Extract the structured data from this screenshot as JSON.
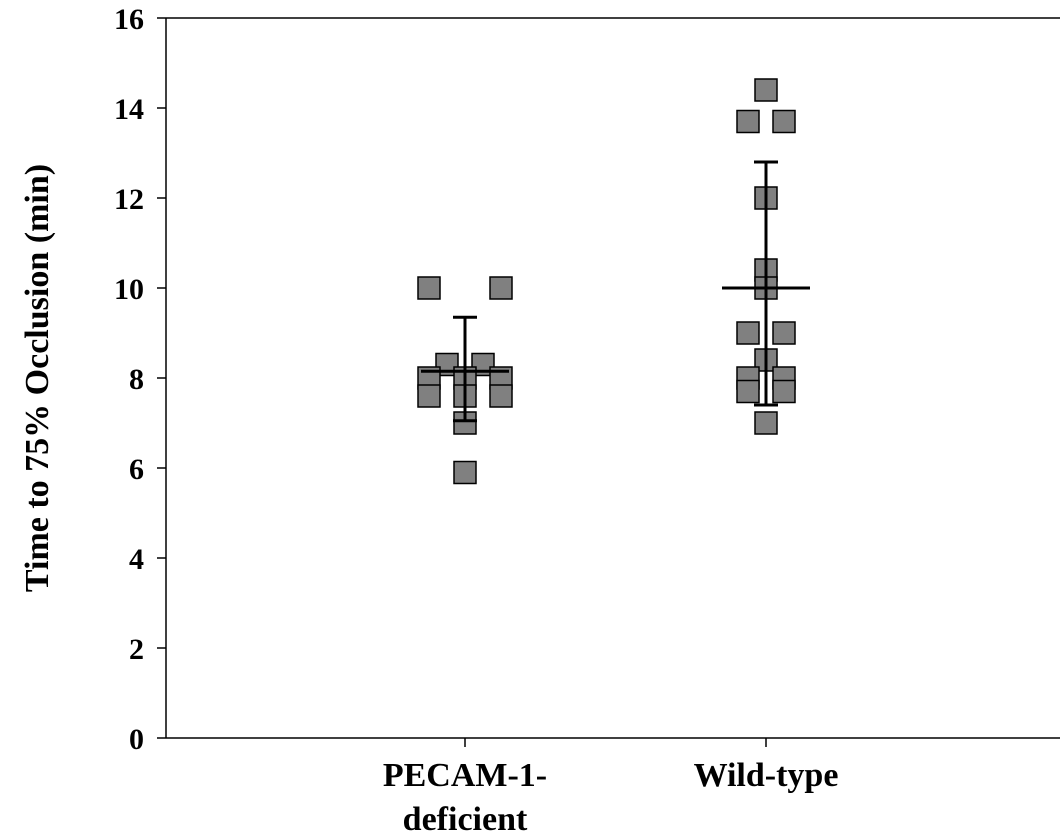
{
  "chart_data": {
    "type": "scatter",
    "ylabel": "Time to 75% Occlusion (min)",
    "ylim": [
      0,
      16
    ],
    "yticks": [
      0,
      2,
      4,
      6,
      8,
      10,
      12,
      14,
      16
    ],
    "categories": [
      "PECAM-1-\ndeficient",
      "Wild-type"
    ],
    "grid": false,
    "legend": "none",
    "marker_color": "#808080",
    "series": [
      {
        "category": "PECAM-1-\ndeficient",
        "points": [
          {
            "y": 10.0,
            "offset": -1
          },
          {
            "y": 10.0,
            "offset": 1
          },
          {
            "y": 8.3,
            "offset": -0.5
          },
          {
            "y": 8.3,
            "offset": 0.5
          },
          {
            "y": 8.0,
            "offset": -1
          },
          {
            "y": 8.0,
            "offset": 0
          },
          {
            "y": 8.0,
            "offset": 1
          },
          {
            "y": 7.6,
            "offset": -1
          },
          {
            "y": 7.6,
            "offset": 0
          },
          {
            "y": 7.6,
            "offset": 1
          },
          {
            "y": 7.0,
            "offset": 0
          },
          {
            "y": 5.9,
            "offset": 0
          }
        ],
        "mean": 8.15,
        "error_upper": 9.35,
        "error_lower": 7.05
      },
      {
        "category": "Wild-type",
        "points": [
          {
            "y": 14.4,
            "offset": 0
          },
          {
            "y": 13.7,
            "offset": -0.5
          },
          {
            "y": 13.7,
            "offset": 0.5
          },
          {
            "y": 12.0,
            "offset": 0
          },
          {
            "y": 10.4,
            "offset": 0
          },
          {
            "y": 10.0,
            "offset": 0
          },
          {
            "y": 9.0,
            "offset": -0.5
          },
          {
            "y": 9.0,
            "offset": 0.5
          },
          {
            "y": 8.4,
            "offset": 0
          },
          {
            "y": 8.0,
            "offset": -0.5
          },
          {
            "y": 8.0,
            "offset": 0.5
          },
          {
            "y": 7.7,
            "offset": -0.5
          },
          {
            "y": 7.7,
            "offset": 0.5
          },
          {
            "y": 7.0,
            "offset": 0
          }
        ],
        "mean": 10.0,
        "error_upper": 12.8,
        "error_lower": 7.4
      }
    ]
  }
}
